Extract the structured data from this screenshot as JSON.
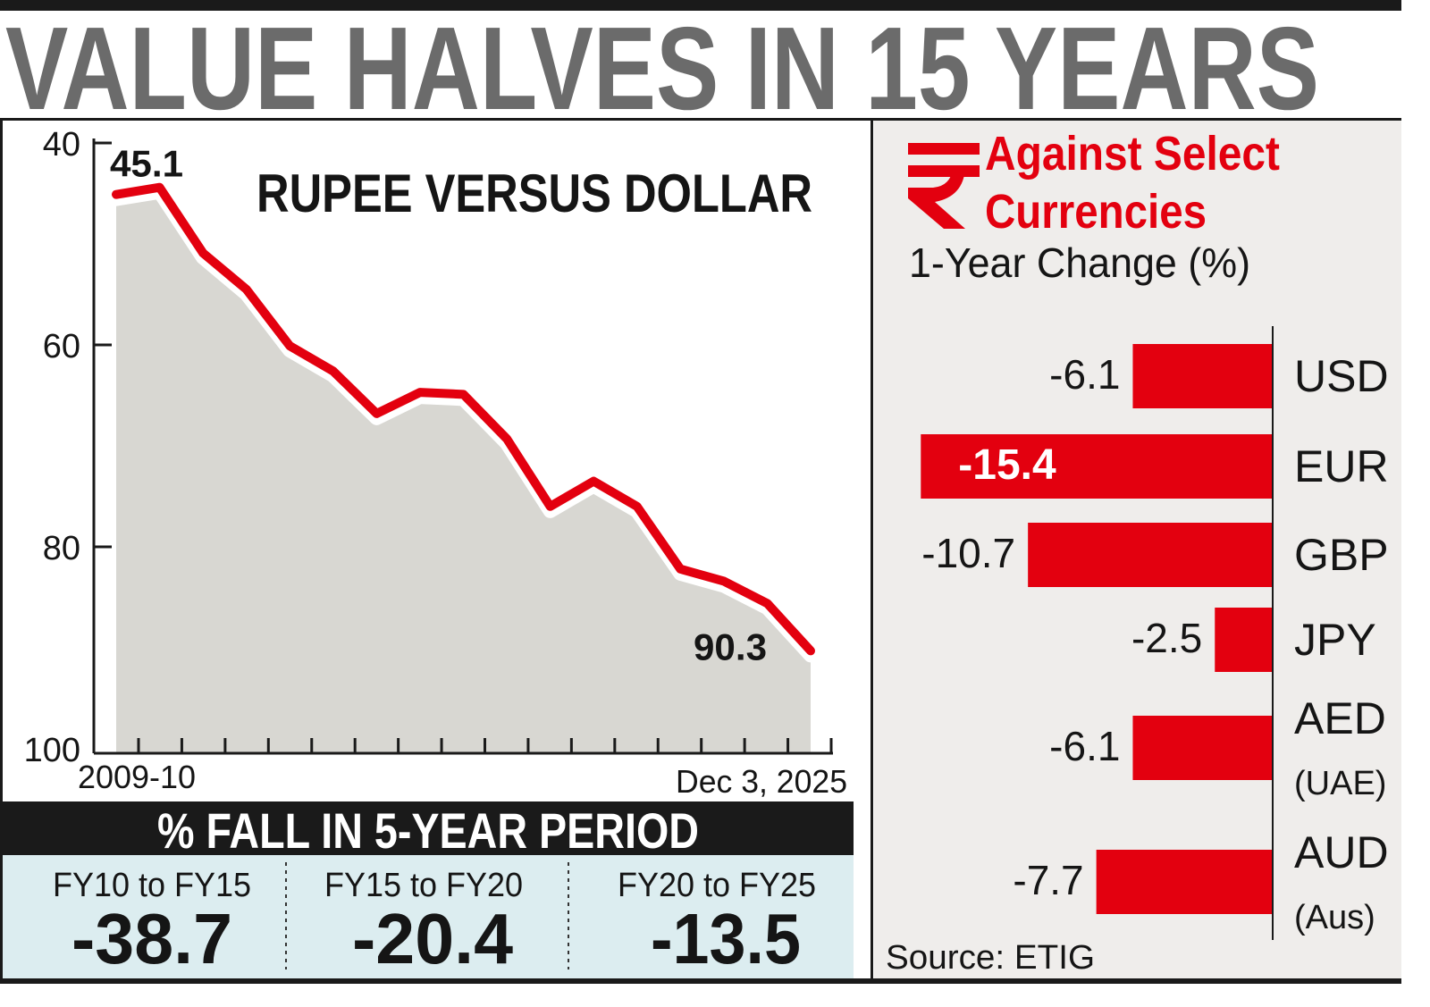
{
  "headline": "VALUE HALVES IN 15 YEARS",
  "colors": {
    "accent_red": "#e3000f",
    "headline_gray": "#6b6b6b",
    "area_gray": "#d8d7d2",
    "right_panel_bg": "#efedeb",
    "bottom_panel_bg": "#dcedf0"
  },
  "chart_data": [
    {
      "type": "area",
      "title": "RUPEE VERSUS DOLLAR",
      "x_start_label": "2009-10",
      "x_end_label": "Dec 3, 2025",
      "y_ticks": [
        "40",
        "60",
        "80",
        "100"
      ],
      "ylim": [
        40,
        100
      ],
      "y_inverted": true,
      "values": [
        45.1,
        44.4,
        50.9,
        54.5,
        60.1,
        62.6,
        66.8,
        64.7,
        64.9,
        69.3,
        76.0,
        73.5,
        76.0,
        82.2,
        83.4,
        85.6,
        90.3
      ],
      "data_labels": {
        "first": "45.1",
        "last": "90.3"
      },
      "grid": false
    },
    {
      "type": "bar",
      "orientation": "horizontal",
      "icon": "rupee-icon",
      "title_line1": "Against Select",
      "title_line2": "Currencies",
      "subtitle": "1-Year Change (%)",
      "categories": [
        {
          "name": "USD",
          "sub": ""
        },
        {
          "name": "EUR",
          "sub": ""
        },
        {
          "name": "GBP",
          "sub": ""
        },
        {
          "name": "JPY",
          "sub": ""
        },
        {
          "name": "AED",
          "sub": "(UAE)"
        },
        {
          "name": "AUD",
          "sub": "(Aus)"
        }
      ],
      "values": [
        -6.1,
        -15.4,
        -10.7,
        -2.5,
        -6.1,
        -7.7
      ],
      "value_labels": [
        "-6.1",
        "-15.4",
        "-10.7",
        "-2.5",
        "-6.1",
        "-7.7"
      ],
      "source": "Source:  ETIG"
    }
  ],
  "five_year": {
    "title": "% FALL IN 5-YEAR PERIOD",
    "periods": [
      {
        "label": "FY10 to FY15",
        "value": "-38.7"
      },
      {
        "label": "FY15 to FY20",
        "value": "-20.4"
      },
      {
        "label": "FY20 to FY25",
        "value": "-13.5"
      }
    ]
  }
}
